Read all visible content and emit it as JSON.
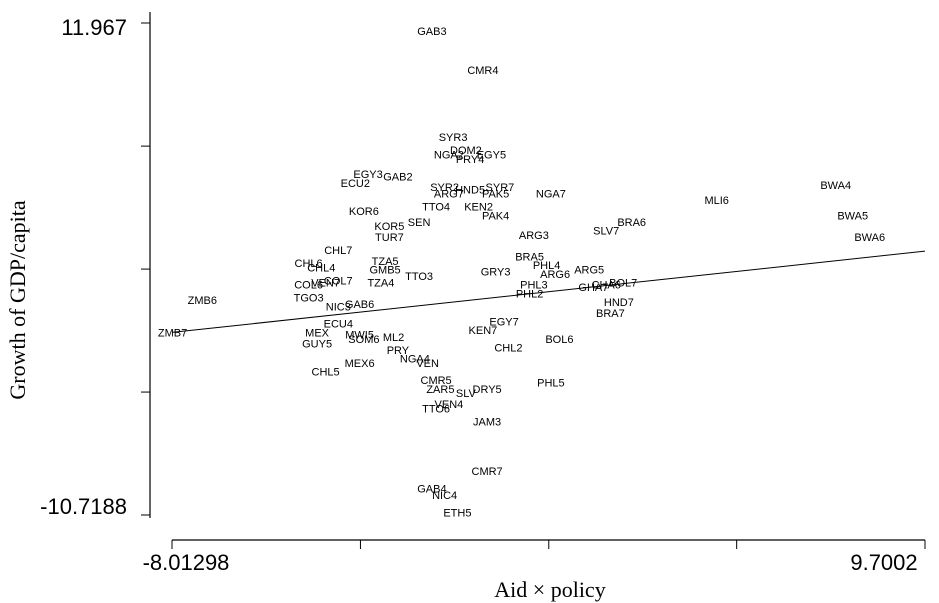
{
  "chart_data": {
    "type": "scatter",
    "xlabel": "Aid × policy",
    "ylabel": "Growth of GDP/capita",
    "xlim": [
      -8.01298,
      9.7002
    ],
    "ylim": [
      -10.7188,
      11.967
    ],
    "x_tick_labels": [
      "-8.01298",
      "9.7002"
    ],
    "y_tick_labels": [
      "11.967",
      "-10.7188"
    ],
    "x_ticks": [
      -8.01298,
      -3.58,
      0.85,
      5.27,
      9.7002
    ],
    "y_ticks": [
      -10.7188,
      -5.05,
      0.62,
      6.29,
      11.967
    ],
    "grid": false,
    "points": [
      {
        "label": "GAB3",
        "x": -1.9,
        "y": 11.6
      },
      {
        "label": "CMR4",
        "x": -0.7,
        "y": 9.8
      },
      {
        "label": "SYR3",
        "x": -1.4,
        "y": 6.7
      },
      {
        "label": "DOM2",
        "x": -1.1,
        "y": 6.1
      },
      {
        "label": "NGA2",
        "x": -1.5,
        "y": 5.9
      },
      {
        "label": "EGY5",
        "x": -0.5,
        "y": 5.9
      },
      {
        "label": "PRY4",
        "x": -1.0,
        "y": 5.7
      },
      {
        "label": "EGY3",
        "x": -3.4,
        "y": 5.0
      },
      {
        "label": "GAB2",
        "x": -2.7,
        "y": 4.9
      },
      {
        "label": "ECU2",
        "x": -3.7,
        "y": 4.6
      },
      {
        "label": "SYR2",
        "x": -1.6,
        "y": 4.4
      },
      {
        "label": "HND5",
        "x": -1.0,
        "y": 4.3
      },
      {
        "label": "SYR7",
        "x": -0.3,
        "y": 4.4
      },
      {
        "label": "ARG7",
        "x": -1.5,
        "y": 4.1
      },
      {
        "label": "PAK5",
        "x": -0.4,
        "y": 4.1
      },
      {
        "label": "NGA7",
        "x": 0.9,
        "y": 4.1
      },
      {
        "label": "MLI6",
        "x": 4.8,
        "y": 3.8
      },
      {
        "label": "BWA4",
        "x": 7.6,
        "y": 4.5
      },
      {
        "label": "KOR6",
        "x": -3.5,
        "y": 3.3
      },
      {
        "label": "TTO4",
        "x": -1.8,
        "y": 3.5
      },
      {
        "label": "KEN2",
        "x": -0.8,
        "y": 3.5
      },
      {
        "label": "PAK4",
        "x": -0.4,
        "y": 3.1
      },
      {
        "label": "BRA6",
        "x": 2.8,
        "y": 2.8
      },
      {
        "label": "BWA5",
        "x": 8.0,
        "y": 3.1
      },
      {
        "label": "KOR5",
        "x": -2.9,
        "y": 2.6
      },
      {
        "label": "SEN",
        "x": -2.2,
        "y": 2.8
      },
      {
        "label": "SLV7",
        "x": 2.2,
        "y": 2.4
      },
      {
        "label": "BWA6",
        "x": 8.4,
        "y": 2.1
      },
      {
        "label": "TUR7",
        "x": -2.9,
        "y": 2.1
      },
      {
        "label": "ARG3",
        "x": 0.5,
        "y": 2.2
      },
      {
        "label": "CHL7",
        "x": -4.1,
        "y": 1.5
      },
      {
        "label": "TZA5",
        "x": -3.0,
        "y": 1.0
      },
      {
        "label": "BRA5",
        "x": 0.4,
        "y": 1.2
      },
      {
        "label": "CHL6",
        "x": -4.8,
        "y": 0.9
      },
      {
        "label": "CHL4",
        "x": -4.5,
        "y": 0.7
      },
      {
        "label": "GMB5",
        "x": -3.0,
        "y": 0.6
      },
      {
        "label": "PHL4",
        "x": 0.8,
        "y": 0.8
      },
      {
        "label": "GRY3",
        "x": -0.4,
        "y": 0.5
      },
      {
        "label": "ARG5",
        "x": 1.8,
        "y": 0.6
      },
      {
        "label": "ARG6",
        "x": 1.0,
        "y": 0.4
      },
      {
        "label": "TTO3",
        "x": -2.2,
        "y": 0.3
      },
      {
        "label": "COL7",
        "x": -4.1,
        "y": 0.1
      },
      {
        "label": "VEN7",
        "x": -4.4,
        "y": 0.0
      },
      {
        "label": "BOL7",
        "x": 2.6,
        "y": 0.0
      },
      {
        "label": "COL6",
        "x": -4.8,
        "y": -0.1
      },
      {
        "label": "TZA4",
        "x": -3.1,
        "y": 0.0
      },
      {
        "label": "PHL3",
        "x": 0.5,
        "y": -0.1
      },
      {
        "label": "GHA7",
        "x": 1.9,
        "y": -0.2
      },
      {
        "label": "CHA6",
        "x": 2.2,
        "y": -0.1
      },
      {
        "label": "ZMB6",
        "x": -7.3,
        "y": -0.8
      },
      {
        "label": "TGO3",
        "x": -4.8,
        "y": -0.7
      },
      {
        "label": "PHL2",
        "x": 0.4,
        "y": -0.5
      },
      {
        "label": "HND7",
        "x": 2.5,
        "y": -0.9
      },
      {
        "label": "NIC3",
        "x": -4.1,
        "y": -1.1
      },
      {
        "label": "GAB6",
        "x": -3.6,
        "y": -1.0
      },
      {
        "label": "BRA7",
        "x": 2.3,
        "y": -1.4
      },
      {
        "label": "EGY7",
        "x": -0.2,
        "y": -1.8
      },
      {
        "label": "ZMB7",
        "x": -8.0,
        "y": -2.3
      },
      {
        "label": "ECU4",
        "x": -4.1,
        "y": -1.9
      },
      {
        "label": "MEX",
        "x": -4.6,
        "y": -2.3
      },
      {
        "label": "MWI5",
        "x": -3.6,
        "y": -2.4
      },
      {
        "label": "KEN7",
        "x": -0.7,
        "y": -2.2
      },
      {
        "label": "SOM6",
        "x": -3.5,
        "y": -2.6
      },
      {
        "label": "ML2",
        "x": -2.8,
        "y": -2.5
      },
      {
        "label": "GUY5",
        "x": -4.6,
        "y": -2.8
      },
      {
        "label": "BOL6",
        "x": 1.1,
        "y": -2.6
      },
      {
        "label": "PRY",
        "x": -2.7,
        "y": -3.1
      },
      {
        "label": "CHL2",
        "x": -0.1,
        "y": -3.0
      },
      {
        "label": "NGA4",
        "x": -2.3,
        "y": -3.5
      },
      {
        "label": "MEX6",
        "x": -3.6,
        "y": -3.7
      },
      {
        "label": "VEN",
        "x": -2.0,
        "y": -3.7
      },
      {
        "label": "CHL5",
        "x": -4.4,
        "y": -4.1
      },
      {
        "label": "CMR5",
        "x": -1.8,
        "y": -4.5
      },
      {
        "label": "PHL5",
        "x": 0.9,
        "y": -4.6
      },
      {
        "label": "ZAR5",
        "x": -1.7,
        "y": -4.9
      },
      {
        "label": "SLV",
        "x": -1.1,
        "y": -5.1
      },
      {
        "label": "DRY5",
        "x": -0.6,
        "y": -4.9
      },
      {
        "label": "VEN4",
        "x": -1.5,
        "y": -5.6
      },
      {
        "label": "TTO6",
        "x": -1.8,
        "y": -5.8
      },
      {
        "label": "JAM3",
        "x": -0.6,
        "y": -6.4
      },
      {
        "label": "CMR7",
        "x": -0.6,
        "y": -8.7
      },
      {
        "label": "GAB4",
        "x": -1.9,
        "y": -9.5
      },
      {
        "label": "NIC4",
        "x": -1.6,
        "y": -9.8
      },
      {
        "label": "ETH5",
        "x": -1.3,
        "y": -10.6
      }
    ],
    "fit_line": {
      "x": [
        -8.01298,
        9.7002
      ],
      "y": [
        -2.3,
        1.45
      ]
    }
  }
}
